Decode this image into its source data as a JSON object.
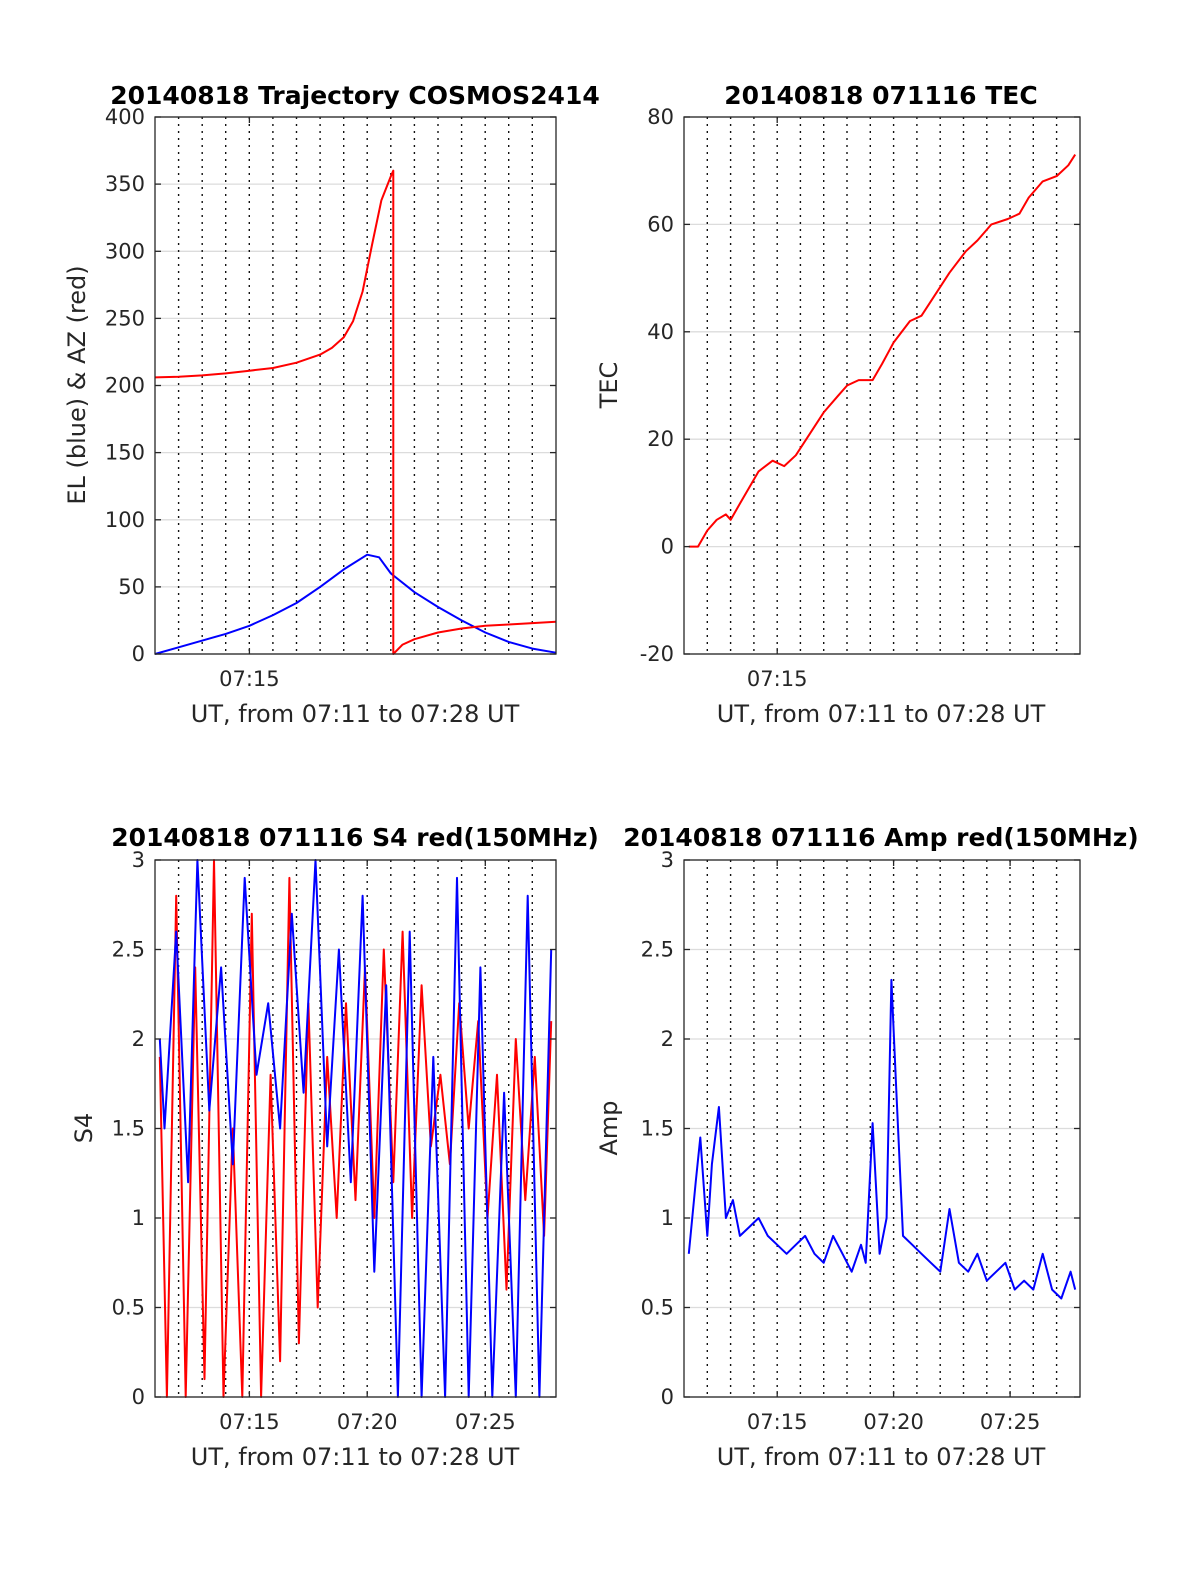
{
  "chart_data": [
    {
      "type": "line",
      "title": "20140818 Trajectory COSMOS2414",
      "xlabel": "UT, from 07:11 to 07:28 UT",
      "ylabel": "EL (blue) & AZ (red)",
      "xlim": [
        7.1833,
        7.4667
      ],
      "ylim": [
        0,
        400
      ],
      "yticks": [
        0,
        50,
        100,
        150,
        200,
        250,
        300,
        350,
        400
      ],
      "xticks": [
        {
          "t": 7.25,
          "label": "07:15"
        }
      ],
      "series": [
        {
          "color": "#0000ff",
          "x": [
            7.1833,
            7.2,
            7.2167,
            7.2333,
            7.25,
            7.2667,
            7.2833,
            7.3,
            7.3167,
            7.3333,
            7.3417,
            7.35,
            7.3667,
            7.3833,
            7.4,
            7.4167,
            7.4333,
            7.45,
            7.4667
          ],
          "y": [
            0,
            5,
            10,
            15,
            21,
            29,
            38,
            50,
            63,
            74,
            72,
            60,
            46,
            35,
            25,
            16,
            9,
            4,
            1
          ]
        },
        {
          "color": "#ff0000",
          "x": [
            7.1833,
            7.2,
            7.2167,
            7.2333,
            7.25,
            7.2667,
            7.2833,
            7.3,
            7.3083,
            7.3167,
            7.3233,
            7.33,
            7.3367,
            7.3433,
            7.35,
            7.3517,
            7.3517,
            7.3583,
            7.3667,
            7.3833,
            7.4,
            7.4167,
            7.4333,
            7.45,
            7.4667
          ],
          "y": [
            206,
            206.5,
            207.5,
            209,
            211,
            213,
            217,
            223,
            228,
            236,
            248,
            270,
            305,
            338,
            356,
            360,
            0,
            7,
            11,
            16,
            19,
            21,
            22,
            23,
            24
          ]
        }
      ]
    },
    {
      "type": "line",
      "title": "20140818 071116 TEC",
      "xlabel": "UT, from 07:11 to 07:28 UT",
      "ylabel": "TEC",
      "xlim": [
        7.1833,
        7.4667
      ],
      "ylim": [
        -20,
        80
      ],
      "yticks": [
        -20,
        0,
        20,
        40,
        60,
        80
      ],
      "xticks": [
        {
          "t": 7.25,
          "label": "07:15"
        }
      ],
      "series": [
        {
          "color": "#ff0000",
          "x": [
            7.1867,
            7.1933,
            7.2,
            7.2067,
            7.2133,
            7.2167,
            7.2233,
            7.2367,
            7.2467,
            7.255,
            7.2633,
            7.2733,
            7.2833,
            7.2933,
            7.3,
            7.3083,
            7.3183,
            7.325,
            7.3333,
            7.345,
            7.3533,
            7.3633,
            7.3733,
            7.385,
            7.3933,
            7.4033,
            7.415,
            7.4233,
            7.43,
            7.44,
            7.45,
            7.4583,
            7.4633
          ],
          "y": [
            0,
            0,
            3,
            5,
            6,
            5,
            8,
            14,
            16,
            15,
            17,
            21,
            25,
            28,
            30,
            31,
            31,
            34,
            38,
            42,
            43,
            47,
            51,
            55,
            57,
            60,
            61,
            62,
            65,
            68,
            69,
            71,
            73
          ]
        }
      ]
    },
    {
      "type": "line",
      "title": "20140818 071116 S4 red(150MHz)",
      "xlabel": "UT, from 07:11 to 07:28 UT",
      "ylabel": "S4",
      "xlim": [
        7.1833,
        7.4667
      ],
      "ylim": [
        0,
        3
      ],
      "yticks": [
        0,
        0.5,
        1,
        1.5,
        2,
        2.5,
        3
      ],
      "xticks": [
        {
          "t": 7.25,
          "label": "07:15"
        },
        {
          "t": 7.3333,
          "label": "07:20"
        },
        {
          "t": 7.4167,
          "label": "07:25"
        }
      ],
      "series": [
        {
          "color": "#ff0000",
          "x": [
            7.1867,
            7.1917,
            7.1983,
            7.205,
            7.2117,
            7.2183,
            7.225,
            7.2317,
            7.2383,
            7.245,
            7.2517,
            7.2583,
            7.265,
            7.2717,
            7.2783,
            7.285,
            7.2917,
            7.2983,
            7.305,
            7.3117,
            7.3183,
            7.325,
            7.3317,
            7.3383,
            7.345,
            7.3517,
            7.3583,
            7.365,
            7.3717,
            7.3783,
            7.385,
            7.3917,
            7.3983,
            7.405,
            7.4117,
            7.4183,
            7.425,
            7.4317,
            7.4383,
            7.445,
            7.4517,
            7.4583,
            7.4633
          ],
          "y": [
            1.9,
            0,
            2.8,
            0,
            2.4,
            0.1,
            3,
            0,
            1.5,
            0,
            2.7,
            0,
            1.8,
            0.2,
            2.9,
            0.3,
            2.2,
            0.5,
            1.9,
            1.0,
            2.2,
            1.1,
            2.4,
            1.0,
            2.5,
            1.2,
            2.6,
            1.0,
            2.3,
            1.4,
            1.8,
            1.3,
            2.2,
            1.5,
            2.1,
            1.0,
            1.8,
            0.6,
            2.0,
            1.1,
            1.9,
            0.9,
            2.1
          ]
        },
        {
          "color": "#0000ff",
          "x": [
            7.1867,
            7.19,
            7.1983,
            7.2067,
            7.2133,
            7.2217,
            7.23,
            7.2383,
            7.2467,
            7.255,
            7.2633,
            7.2717,
            7.28,
            7.2883,
            7.2967,
            7.305,
            7.3133,
            7.3217,
            7.33,
            7.3383,
            7.3467,
            7.355,
            7.3633,
            7.3717,
            7.38,
            7.3883,
            7.3967,
            7.405,
            7.4133,
            7.4217,
            7.43,
            7.4383,
            7.4467,
            7.455,
            7.4633
          ],
          "y": [
            2.0,
            1.5,
            2.6,
            1.2,
            3.0,
            1.6,
            2.4,
            1.3,
            2.9,
            1.8,
            2.2,
            1.5,
            2.7,
            1.7,
            3.0,
            1.4,
            2.5,
            1.2,
            2.8,
            0.7,
            2.3,
            0,
            2.6,
            0,
            1.9,
            0,
            2.9,
            0,
            2.4,
            0,
            1.7,
            0,
            2.8,
            0,
            2.5
          ]
        }
      ]
    },
    {
      "type": "line",
      "title": "20140818 071116 Amp red(150MHz)",
      "xlabel": "UT, from 07:11 to 07:28 UT",
      "ylabel": "Amp",
      "xlim": [
        7.1833,
        7.4667
      ],
      "ylim": [
        0,
        3
      ],
      "yticks": [
        0,
        0.5,
        1,
        1.5,
        2,
        2.5,
        3
      ],
      "xticks": [
        {
          "t": 7.25,
          "label": "07:15"
        },
        {
          "t": 7.3333,
          "label": "07:20"
        },
        {
          "t": 7.4167,
          "label": "07:25"
        }
      ],
      "series": [
        {
          "color": "#0000ff",
          "x": [
            7.1867,
            7.1917,
            7.195,
            7.2,
            7.2033,
            7.2083,
            7.2133,
            7.2183,
            7.2233,
            7.23,
            7.2367,
            7.2433,
            7.25,
            7.2567,
            7.2633,
            7.27,
            7.2767,
            7.2833,
            7.29,
            7.2967,
            7.3033,
            7.31,
            7.3133,
            7.3183,
            7.3233,
            7.3283,
            7.3317,
            7.335,
            7.34,
            7.3467,
            7.3533,
            7.36,
            7.3667,
            7.3733,
            7.38,
            7.3867,
            7.3933,
            7.4,
            7.4067,
            7.4133,
            7.42,
            7.4267,
            7.4333,
            7.44,
            7.4467,
            7.4533,
            7.46,
            7.4633
          ],
          "y": [
            0.8,
            1.2,
            1.45,
            0.9,
            1.3,
            1.62,
            1.0,
            1.1,
            0.9,
            0.95,
            1.0,
            0.9,
            0.85,
            0.8,
            0.85,
            0.9,
            0.8,
            0.75,
            0.9,
            0.8,
            0.7,
            0.85,
            0.75,
            1.53,
            0.8,
            1.0,
            2.33,
            1.75,
            0.9,
            0.85,
            0.8,
            0.75,
            0.7,
            1.05,
            0.75,
            0.7,
            0.8,
            0.65,
            0.7,
            0.75,
            0.6,
            0.65,
            0.6,
            0.8,
            0.6,
            0.55,
            0.7,
            0.6
          ]
        }
      ]
    }
  ]
}
